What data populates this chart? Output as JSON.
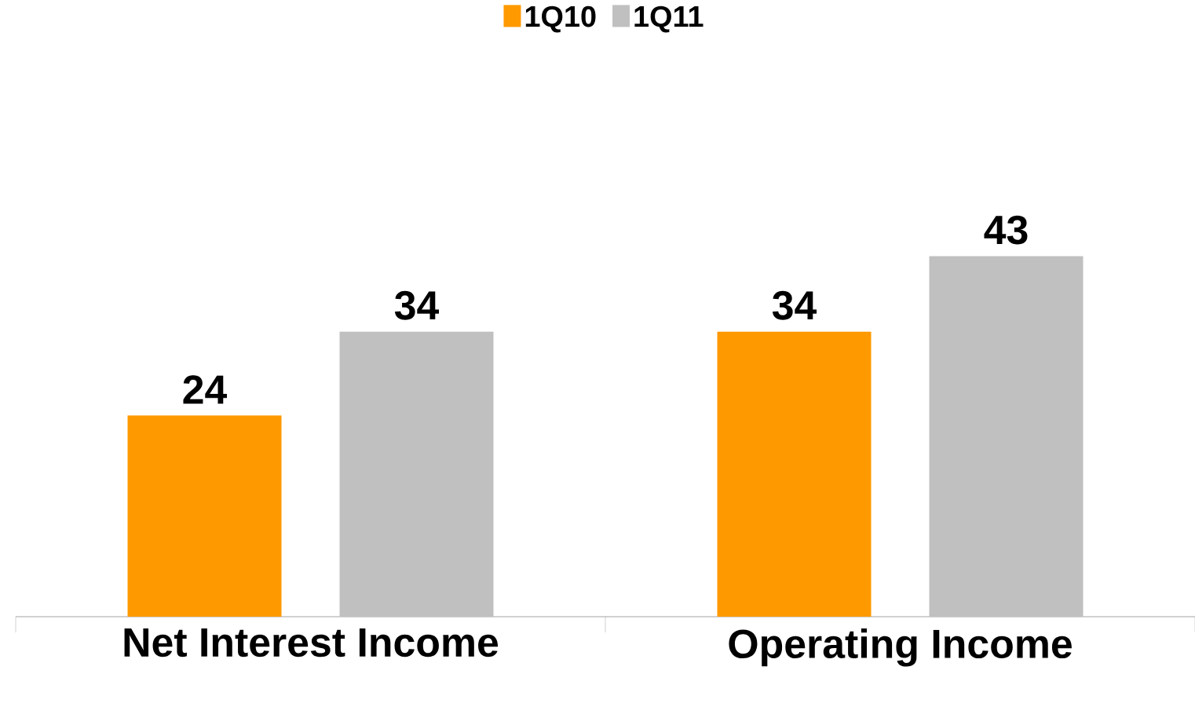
{
  "chart_data": {
    "type": "bar",
    "categories": [
      "Net Interest Income",
      "Operating Income"
    ],
    "series": [
      {
        "name": "1Q10",
        "color": "#ff9900",
        "values": [
          24,
          34
        ]
      },
      {
        "name": "1Q11",
        "color": "#c0c0c0",
        "values": [
          34,
          43
        ]
      }
    ],
    "data_labels": true,
    "legend": "top"
  }
}
